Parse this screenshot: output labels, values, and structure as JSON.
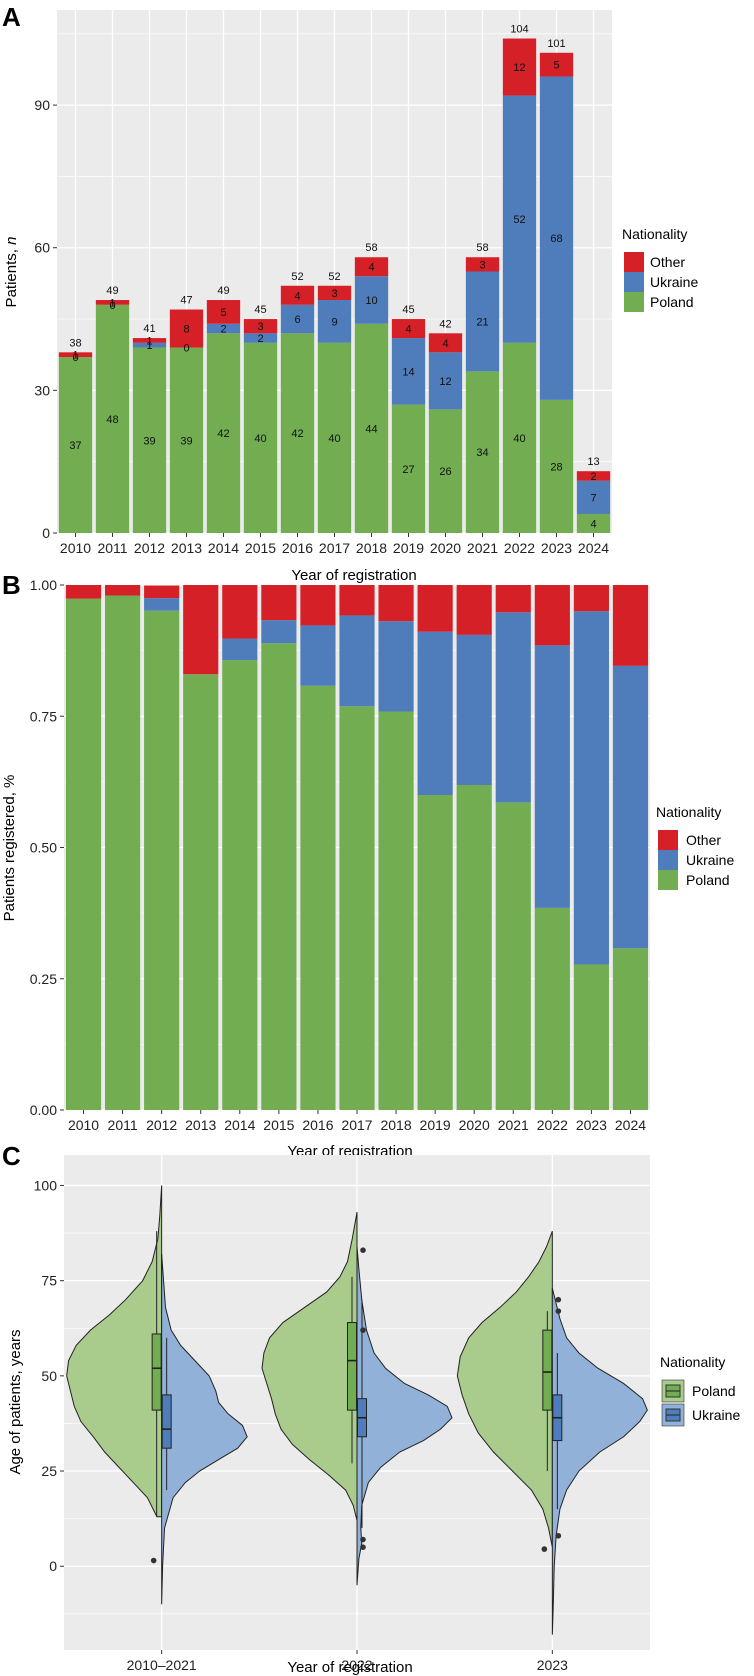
{
  "colors": {
    "poland": "#72ad51",
    "ukraine": "#4f7dbb",
    "other": "#d62027",
    "panel_bg": "#ebebeb",
    "grid": "#ffffff",
    "violin_poland": "#a9cc8c",
    "violin_ukraine": "#92b1d9"
  },
  "chart_data": [
    {
      "panel": "A",
      "type": "bar",
      "stacked": true,
      "categories": [
        "2010",
        "2011",
        "2012",
        "2013",
        "2014",
        "2015",
        "2016",
        "2017",
        "2018",
        "2019",
        "2020",
        "2021",
        "2022",
        "2023",
        "2024"
      ],
      "series": [
        {
          "name": "Poland",
          "values": [
            37,
            48,
            39,
            39,
            42,
            40,
            42,
            40,
            44,
            27,
            26,
            34,
            40,
            28,
            4
          ]
        },
        {
          "name": "Ukraine",
          "values": [
            0,
            0,
            1,
            0,
            2,
            2,
            6,
            9,
            10,
            14,
            12,
            21,
            52,
            68,
            7
          ]
        },
        {
          "name": "Other",
          "values": [
            1,
            1,
            1,
            8,
            5,
            3,
            4,
            3,
            4,
            4,
            4,
            3,
            12,
            5,
            2
          ]
        }
      ],
      "segment_labels": [
        [
          "37",
          "48",
          "39",
          "39",
          "42",
          "40",
          "42",
          "40",
          "44",
          "27",
          "26",
          "34",
          "40",
          "28",
          "4"
        ],
        [
          "0",
          "0",
          "1",
          "0",
          "2",
          "2",
          "6",
          "9",
          "10",
          "14",
          "12",
          "21",
          "52",
          "68",
          "7"
        ],
        [
          "1",
          "1",
          "1",
          "8",
          "5",
          "3",
          "4",
          "3",
          "4",
          "4",
          "4",
          "3",
          "12",
          "5",
          "2"
        ]
      ],
      "totals": [
        "38",
        "49",
        "41",
        "47",
        "49",
        "45",
        "52",
        "52",
        "58",
        "45",
        "42",
        "58",
        "104",
        "101",
        "13"
      ],
      "ylim": [
        0,
        110
      ],
      "yticks": [
        0,
        30,
        60,
        90
      ],
      "ytick_labels": [
        "0",
        "30",
        "60",
        "90"
      ],
      "xlabel": "Year of registration",
      "ylabel": "Patients, ",
      "ylabel_italic": "n",
      "legend": {
        "title": "Nationality",
        "entries": [
          "Other",
          "Ukraine",
          "Poland"
        ]
      }
    },
    {
      "panel": "B",
      "type": "bar",
      "stacked": true,
      "percent": true,
      "categories": [
        "2010",
        "2011",
        "2012",
        "2013",
        "2014",
        "2015",
        "2016",
        "2017",
        "2018",
        "2019",
        "2020",
        "2021",
        "2022",
        "2023",
        "2024"
      ],
      "series": [
        {
          "name": "Poland",
          "values": [
            0.974,
            0.98,
            0.951,
            0.83,
            0.857,
            0.889,
            0.808,
            0.769,
            0.759,
            0.6,
            0.619,
            0.586,
            0.385,
            0.277,
            0.308
          ]
        },
        {
          "name": "Ukraine",
          "values": [
            0,
            0,
            0.024,
            0,
            0.041,
            0.044,
            0.115,
            0.173,
            0.172,
            0.311,
            0.286,
            0.362,
            0.5,
            0.673,
            0.538
          ]
        },
        {
          "name": "Other",
          "values": [
            0.026,
            0.02,
            0.024,
            0.17,
            0.102,
            0.067,
            0.077,
            0.058,
            0.069,
            0.089,
            0.095,
            0.052,
            0.115,
            0.05,
            0.154
          ]
        }
      ],
      "ylim": [
        0,
        1
      ],
      "yticks": [
        0,
        0.25,
        0.5,
        0.75,
        1
      ],
      "ytick_labels": [
        "0.00",
        "0.25",
        "0.50",
        "0.75",
        "1.00"
      ],
      "xlabel": "Year of registration",
      "ylabel": "Patients registered, %",
      "legend": {
        "title": "Nationality",
        "entries": [
          "Other",
          "Ukraine",
          "Poland"
        ]
      }
    },
    {
      "panel": "C",
      "type": "violin",
      "categories": [
        "2010–2021",
        "2022",
        "2023"
      ],
      "groups": [
        {
          "poland": {
            "vmin": 13,
            "vmax": 100,
            "q1": 41,
            "median": 52,
            "q3": 61,
            "wlo": 13,
            "whi": 88,
            "outliers": [
              1.5
            ],
            "density": [
              [
                13,
                0.05
              ],
              [
                18,
                0.15
              ],
              [
                22,
                0.3
              ],
              [
                26,
                0.45
              ],
              [
                30,
                0.6
              ],
              [
                34,
                0.72
              ],
              [
                38,
                0.85
              ],
              [
                42,
                0.92
              ],
              [
                46,
                0.96
              ],
              [
                50,
                1.0
              ],
              [
                54,
                0.98
              ],
              [
                58,
                0.9
              ],
              [
                62,
                0.75
              ],
              [
                66,
                0.55
              ],
              [
                70,
                0.38
              ],
              [
                75,
                0.2
              ],
              [
                80,
                0.1
              ],
              [
                86,
                0.04
              ],
              [
                92,
                0.02
              ],
              [
                100,
                0.0
              ]
            ]
          },
          "ukraine": {
            "vmin": -10,
            "vmax": 82,
            "q1": 31,
            "median": 36,
            "q3": 45,
            "wlo": 20,
            "whi": 60,
            "outliers": [],
            "density": [
              [
                -10,
                0.0
              ],
              [
                0,
                0.01
              ],
              [
                10,
                0.03
              ],
              [
                18,
                0.12
              ],
              [
                22,
                0.25
              ],
              [
                25,
                0.4
              ],
              [
                28,
                0.6
              ],
              [
                31,
                0.8
              ],
              [
                34,
                0.9
              ],
              [
                37,
                0.85
              ],
              [
                40,
                0.7
              ],
              [
                43,
                0.6
              ],
              [
                46,
                0.57
              ],
              [
                50,
                0.5
              ],
              [
                54,
                0.35
              ],
              [
                58,
                0.2
              ],
              [
                62,
                0.1
              ],
              [
                68,
                0.04
              ],
              [
                75,
                0.02
              ],
              [
                82,
                0.0
              ]
            ]
          }
        },
        {
          "poland": {
            "vmin": 12,
            "vmax": 93,
            "q1": 41,
            "median": 54,
            "q3": 64,
            "wlo": 27,
            "whi": 76,
            "outliers": [],
            "density": [
              [
                12,
                0.0
              ],
              [
                16,
                0.04
              ],
              [
                20,
                0.12
              ],
              [
                24,
                0.3
              ],
              [
                28,
                0.5
              ],
              [
                32,
                0.68
              ],
              [
                36,
                0.8
              ],
              [
                40,
                0.86
              ],
              [
                44,
                0.9
              ],
              [
                48,
                0.95
              ],
              [
                52,
                1.0
              ],
              [
                56,
                0.98
              ],
              [
                60,
                0.92
              ],
              [
                64,
                0.78
              ],
              [
                68,
                0.55
              ],
              [
                72,
                0.32
              ],
              [
                76,
                0.18
              ],
              [
                80,
                0.1
              ],
              [
                86,
                0.05
              ],
              [
                93,
                0.0
              ]
            ]
          },
          "ukraine": {
            "vmin": -5,
            "vmax": 84,
            "q1": 34,
            "median": 39,
            "q3": 44,
            "wlo": 10,
            "whi": 70,
            "outliers": [
              83,
              62,
              7,
              5
            ],
            "density": [
              [
                -5,
                0.0
              ],
              [
                2,
                0.02
              ],
              [
                6,
                0.05
              ],
              [
                10,
                0.04
              ],
              [
                16,
                0.05
              ],
              [
                22,
                0.12
              ],
              [
                26,
                0.25
              ],
              [
                30,
                0.45
              ],
              [
                33,
                0.7
              ],
              [
                36,
                0.88
              ],
              [
                39,
                1.0
              ],
              [
                42,
                0.95
              ],
              [
                45,
                0.75
              ],
              [
                48,
                0.5
              ],
              [
                52,
                0.3
              ],
              [
                56,
                0.18
              ],
              [
                62,
                0.1
              ],
              [
                70,
                0.05
              ],
              [
                78,
                0.02
              ],
              [
                84,
                0.0
              ]
            ]
          }
        },
        {
          "poland": {
            "vmin": 5,
            "vmax": 88,
            "q1": 41,
            "median": 51,
            "q3": 62,
            "wlo": 25,
            "whi": 67,
            "outliers": [
              4.5
            ],
            "density": [
              [
                5,
                0.0
              ],
              [
                10,
                0.04
              ],
              [
                15,
                0.1
              ],
              [
                20,
                0.22
              ],
              [
                25,
                0.42
              ],
              [
                30,
                0.62
              ],
              [
                35,
                0.78
              ],
              [
                40,
                0.88
              ],
              [
                45,
                0.95
              ],
              [
                50,
                1.0
              ],
              [
                55,
                0.97
              ],
              [
                60,
                0.88
              ],
              [
                64,
                0.74
              ],
              [
                68,
                0.55
              ],
              [
                72,
                0.38
              ],
              [
                76,
                0.25
              ],
              [
                80,
                0.14
              ],
              [
                84,
                0.06
              ],
              [
                88,
                0.0
              ]
            ]
          },
          "ukraine": {
            "vmin": -18,
            "vmax": 73,
            "q1": 33,
            "median": 39,
            "q3": 45,
            "wlo": 15,
            "whi": 56,
            "outliers": [
              70,
              67,
              8
            ],
            "density": [
              [
                -18,
                0.0
              ],
              [
                -10,
                0.01
              ],
              [
                0,
                0.02
              ],
              [
                8,
                0.04
              ],
              [
                15,
                0.08
              ],
              [
                20,
                0.15
              ],
              [
                25,
                0.28
              ],
              [
                30,
                0.5
              ],
              [
                34,
                0.75
              ],
              [
                38,
                0.92
              ],
              [
                41,
                1.0
              ],
              [
                44,
                0.95
              ],
              [
                48,
                0.75
              ],
              [
                52,
                0.48
              ],
              [
                56,
                0.28
              ],
              [
                60,
                0.15
              ],
              [
                65,
                0.08
              ],
              [
                73,
                0.0
              ]
            ]
          }
        }
      ],
      "ylim": [
        -22,
        108
      ],
      "yticks": [
        0,
        25,
        50,
        75,
        100
      ],
      "ytick_labels": [
        "0",
        "25",
        "50",
        "75",
        "100"
      ],
      "xlabel": "Year of registration",
      "ylabel": "Age of patients, years",
      "legend": {
        "title": "Nationality",
        "entries": [
          "Poland",
          "Ukraine"
        ]
      }
    }
  ],
  "panel_letters": [
    "A",
    "B",
    "C"
  ]
}
